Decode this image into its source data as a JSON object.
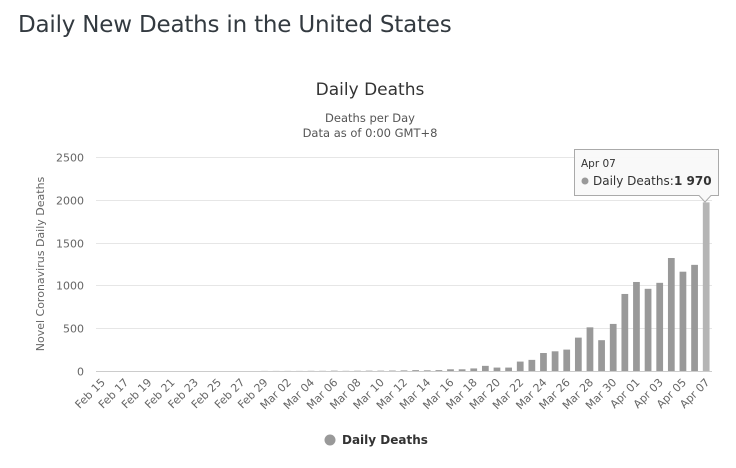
{
  "page": {
    "title": "Daily New Deaths in the United States"
  },
  "chart_data": {
    "type": "bar",
    "title": "Daily Deaths",
    "subtitle": [
      "Deaths per Day",
      "Data as of 0:00 GMT+8"
    ],
    "xlabel": "",
    "ylabel": "Novel Coronavirus Daily Deaths",
    "ylim": [
      0,
      2500
    ],
    "yticks": [
      0,
      500,
      1000,
      1500,
      2000,
      2500
    ],
    "grid": true,
    "legend": {
      "entries": [
        "Daily Deaths"
      ],
      "position": "bottom-center"
    },
    "bar_color": "#999999",
    "highlight_color": "#b5b5b5",
    "xtick_labels": [
      "Feb 15",
      "Feb 17",
      "Feb 19",
      "Feb 21",
      "Feb 23",
      "Feb 25",
      "Feb 27",
      "Feb 29",
      "Mar 02",
      "Mar 04",
      "Mar 06",
      "Mar 08",
      "Mar 10",
      "Mar 12",
      "Mar 14",
      "Mar 16",
      "Mar 18",
      "Mar 20",
      "Mar 22",
      "Mar 24",
      "Mar 26",
      "Mar 28",
      "Mar 30",
      "Apr 01",
      "Apr 03",
      "Apr 05",
      "Apr 07"
    ],
    "categories": [
      "Feb 15",
      "Feb 16",
      "Feb 17",
      "Feb 18",
      "Feb 19",
      "Feb 20",
      "Feb 21",
      "Feb 22",
      "Feb 23",
      "Feb 24",
      "Feb 25",
      "Feb 26",
      "Feb 27",
      "Feb 28",
      "Feb 29",
      "Mar 01",
      "Mar 02",
      "Mar 03",
      "Mar 04",
      "Mar 05",
      "Mar 06",
      "Mar 07",
      "Mar 08",
      "Mar 09",
      "Mar 10",
      "Mar 11",
      "Mar 12",
      "Mar 13",
      "Mar 14",
      "Mar 15",
      "Mar 16",
      "Mar 17",
      "Mar 18",
      "Mar 19",
      "Mar 20",
      "Mar 21",
      "Mar 22",
      "Mar 23",
      "Mar 24",
      "Mar 25",
      "Mar 26",
      "Mar 27",
      "Mar 28",
      "Mar 29",
      "Mar 30",
      "Mar 31",
      "Apr 01",
      "Apr 02",
      "Apr 03",
      "Apr 04",
      "Apr 05",
      "Apr 06",
      "Apr 07"
    ],
    "series": [
      {
        "name": "Daily Deaths",
        "values": [
          0,
          0,
          0,
          0,
          0,
          0,
          0,
          0,
          0,
          0,
          0,
          0,
          0,
          0,
          1,
          1,
          1,
          1,
          2,
          2,
          4,
          2,
          3,
          4,
          4,
          5,
          7,
          10,
          8,
          10,
          20,
          20,
          30,
          60,
          40,
          40,
          110,
          130,
          210,
          230,
          250,
          390,
          510,
          360,
          550,
          900,
          1040,
          960,
          1030,
          1320,
          1160,
          1240,
          1970
        ]
      }
    ],
    "tooltip": {
      "category": "Apr 07",
      "series": "Daily Deaths",
      "label": "Daily Deaths:",
      "value": "1 970"
    }
  }
}
